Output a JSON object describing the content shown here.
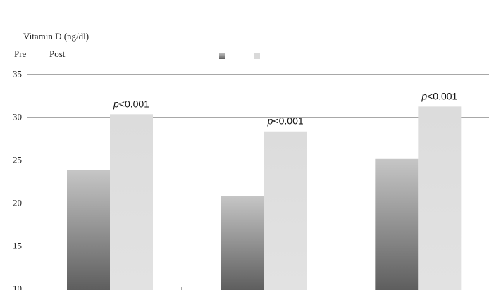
{
  "chart_data": {
    "type": "bar",
    "title": "",
    "ylabel": "Vitamin D (ng/dl)",
    "xlabel": "",
    "ylim": [
      10,
      35
    ],
    "yticks": [
      10,
      15,
      20,
      25,
      30,
      35
    ],
    "grid": true,
    "legend_position": "top",
    "categories": [
      "",
      "",
      ""
    ],
    "series": [
      {
        "name": "Pre",
        "values": [
          23.8,
          20.8,
          25.1
        ],
        "color": "#888888"
      },
      {
        "name": "Post",
        "values": [
          30.3,
          28.3,
          31.2
        ],
        "color": "#dddddd"
      }
    ],
    "annotations": [
      {
        "prefix": "p",
        "text": "<0.001"
      },
      {
        "prefix": "p",
        "text": "<0.001"
      },
      {
        "prefix": "p",
        "text": "<0.001"
      }
    ]
  }
}
